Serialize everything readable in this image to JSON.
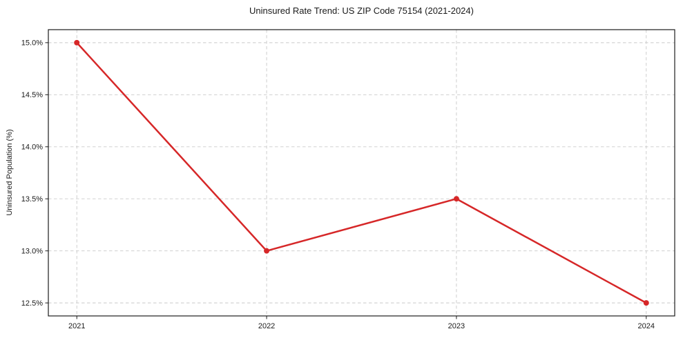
{
  "chart_data": {
    "type": "line",
    "title": "Uninsured Rate Trend: US ZIP Code 75154 (2021-2024)",
    "xlabel": "",
    "ylabel": "Uninsured Population (%)",
    "categories": [
      "2021",
      "2022",
      "2023",
      "2024"
    ],
    "values": [
      15.0,
      13.0,
      13.5,
      12.5
    ],
    "ytick_values": [
      12.5,
      13.0,
      13.5,
      14.0,
      14.5,
      15.0
    ],
    "ytick_labels": [
      "12.5%",
      "13.0%",
      "13.5%",
      "14.0%",
      "14.5%",
      "15.0%"
    ],
    "ylim": [
      12.375,
      15.125
    ],
    "grid": true,
    "grid_style": "dashed",
    "legend": "none",
    "colors": {
      "line": "#d62728",
      "marker": "#d62728",
      "grid": "#c9c9c9",
      "axis": "#1a1a1a",
      "text": "#1a1a1a",
      "background": "#ffffff"
    }
  }
}
